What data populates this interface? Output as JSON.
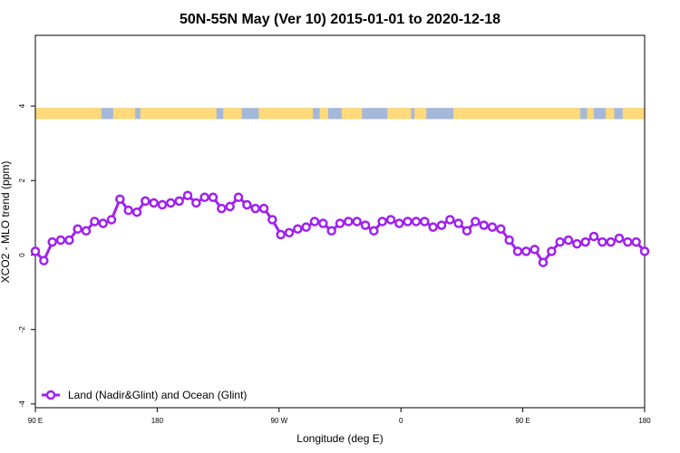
{
  "chart_data": {
    "type": "line",
    "title": "50N-55N May (Ver 10)   2015-01-01 to 2020-12-18",
    "xlabel": "Longitude (deg E)",
    "ylabel": "XCO2 - MLO trend (ppm)",
    "xlim": [
      90,
      450
    ],
    "ylim": [
      -4.1,
      5.9
    ],
    "x_ticks": [
      {
        "value": 90,
        "label": "90 E"
      },
      {
        "value": 162,
        "label": "180"
      },
      {
        "value": 234,
        "label": "90 W"
      },
      {
        "value": 306,
        "label": "0"
      },
      {
        "value": 378,
        "label": "90 E"
      },
      {
        "value": 450,
        "label": "180"
      }
    ],
    "y_ticks": [
      {
        "value": -4,
        "label": "-4"
      },
      {
        "value": -2,
        "label": "-2"
      },
      {
        "value": 0,
        "label": "0"
      },
      {
        "value": 2,
        "label": "2"
      },
      {
        "value": 4,
        "label": "4"
      }
    ],
    "legend": {
      "placement": "bottom-left"
    },
    "land_ocean_strip": {
      "y_range": [
        3.65,
        3.95
      ],
      "ocean_color": "#A4B8DA",
      "land_color": "#FFD97A",
      "land_segments": [
        [
          90,
          129
        ],
        [
          136,
          149
        ],
        [
          152,
          197
        ],
        [
          201,
          212
        ],
        [
          222,
          254
        ],
        [
          258,
          263
        ],
        [
          271,
          283
        ],
        [
          298,
          312
        ],
        [
          314,
          321
        ],
        [
          337,
          412
        ],
        [
          416,
          420
        ],
        [
          427,
          432
        ],
        [
          437,
          450
        ]
      ]
    },
    "series": [
      {
        "name": "Land (Nadir&Glint) and Ocean (Glint)",
        "color": "#A020F0",
        "x": [
          90,
          95,
          100,
          105,
          110,
          115,
          120,
          125,
          130,
          135,
          140,
          145,
          150,
          155,
          160,
          165,
          170,
          175,
          180,
          185,
          190,
          195,
          200,
          205,
          210,
          215,
          220,
          225,
          230,
          235,
          240,
          245,
          250,
          255,
          260,
          265,
          270,
          275,
          280,
          285,
          290,
          295,
          300,
          305,
          310,
          315,
          320,
          325,
          330,
          335,
          340,
          345,
          350,
          355,
          360,
          365,
          370,
          375,
          380,
          385,
          390,
          395,
          400,
          405,
          410,
          415,
          420,
          425,
          430,
          435,
          440,
          445,
          450
        ],
        "y": [
          0.1,
          -0.15,
          0.35,
          0.4,
          0.4,
          0.7,
          0.65,
          0.9,
          0.85,
          0.95,
          1.5,
          1.2,
          1.15,
          1.45,
          1.4,
          1.35,
          1.4,
          1.45,
          1.6,
          1.4,
          1.55,
          1.55,
          1.25,
          1.3,
          1.55,
          1.35,
          1.25,
          1.25,
          0.95,
          0.55,
          0.6,
          0.7,
          0.75,
          0.9,
          0.85,
          0.65,
          0.85,
          0.9,
          0.9,
          0.8,
          0.65,
          0.9,
          0.95,
          0.85,
          0.9,
          0.9,
          0.9,
          0.75,
          0.8,
          0.95,
          0.85,
          0.65,
          0.9,
          0.8,
          0.75,
          0.7,
          0.4,
          0.1,
          0.1,
          0.15,
          -0.2,
          0.1,
          0.35,
          0.4,
          0.3,
          0.35,
          0.5,
          0.35,
          0.35,
          0.45,
          0.35,
          0.35,
          0.1
        ]
      }
    ]
  }
}
